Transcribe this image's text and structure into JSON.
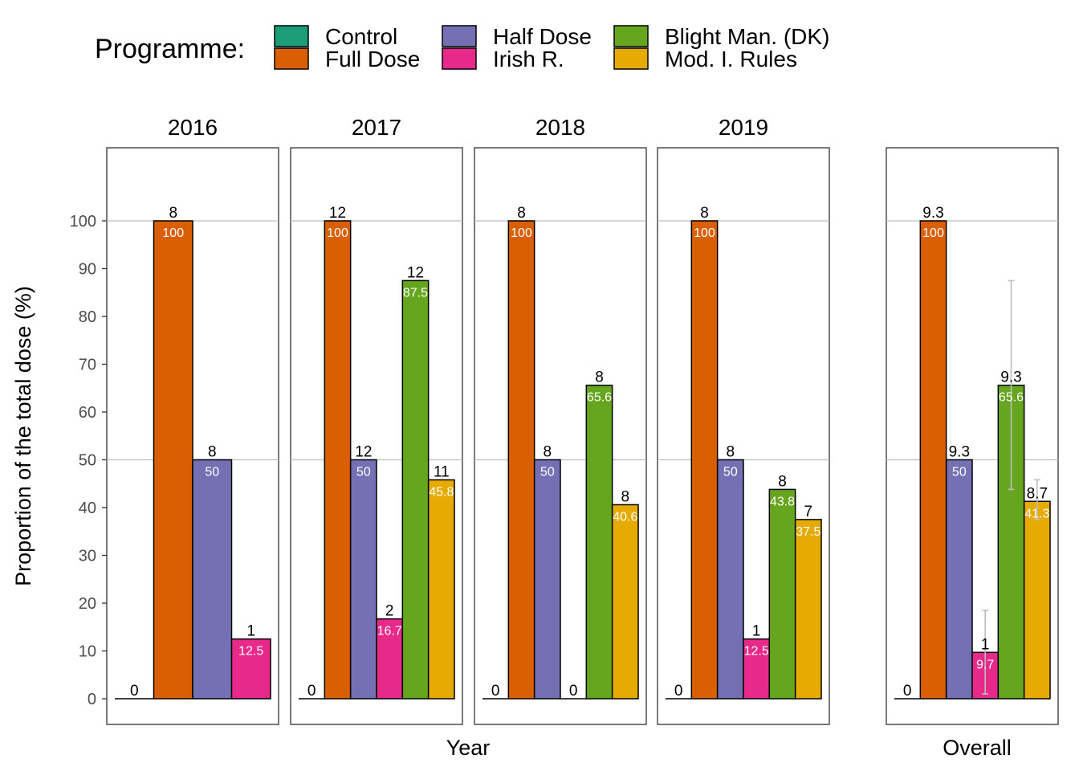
{
  "legend": {
    "title": "Programme:",
    "items": [
      {
        "label": "Control",
        "color": "#1b9e77"
      },
      {
        "label": "Full Dose",
        "color": "#d95f02"
      },
      {
        "label": "Half Dose",
        "color": "#7570b3"
      },
      {
        "label": "Irish R.",
        "color": "#e7298a"
      },
      {
        "label": "Blight Man. (DK)",
        "color": "#66a61e"
      },
      {
        "label": "Mod. I. Rules",
        "color": "#e6ab02"
      }
    ]
  },
  "chart_data": {
    "type": "bar",
    "ylabel": "Proportion of the total dose (%)",
    "xlabels": [
      "Year",
      "Overall"
    ],
    "ylim": [
      0,
      100
    ],
    "yticks": [
      0,
      10,
      20,
      30,
      40,
      50,
      60,
      70,
      80,
      90,
      100
    ],
    "grid": "horizontal major lines at 50 and 100",
    "legend_position": "top",
    "series_names": [
      "Control",
      "Full Dose",
      "Half Dose",
      "Irish R.",
      "Blight Man. (DK)",
      "Mod. I. Rules"
    ],
    "panels": [
      {
        "title": "2016",
        "bars": [
          {
            "series": "Control",
            "value": 0,
            "label": "0",
            "count": "0"
          },
          {
            "series": "Full Dose",
            "value": 100,
            "label": "100",
            "count": "8"
          },
          {
            "series": "Half Dose",
            "value": 50,
            "label": "50",
            "count": "8"
          },
          {
            "series": "Irish R.",
            "value": 12.5,
            "label": "12.5",
            "count": "1"
          }
        ]
      },
      {
        "title": "2017",
        "bars": [
          {
            "series": "Control",
            "value": 0,
            "label": "0",
            "count": "0"
          },
          {
            "series": "Full Dose",
            "value": 100,
            "label": "100",
            "count": "12"
          },
          {
            "series": "Half Dose",
            "value": 50,
            "label": "50",
            "count": "12"
          },
          {
            "series": "Irish R.",
            "value": 16.7,
            "label": "16.7",
            "count": "2"
          },
          {
            "series": "Blight Man. (DK)",
            "value": 87.5,
            "label": "87.5",
            "count": "12"
          },
          {
            "series": "Mod. I. Rules",
            "value": 45.8,
            "label": "45.8",
            "count": "11"
          }
        ]
      },
      {
        "title": "2018",
        "bars": [
          {
            "series": "Control",
            "value": 0,
            "label": "0",
            "count": "0"
          },
          {
            "series": "Full Dose",
            "value": 100,
            "label": "100",
            "count": "8"
          },
          {
            "series": "Half Dose",
            "value": 50,
            "label": "50",
            "count": "8"
          },
          {
            "series": "Irish R.",
            "value": 0,
            "label": "0",
            "count": "0"
          },
          {
            "series": "Blight Man. (DK)",
            "value": 65.6,
            "label": "65.6",
            "count": "8"
          },
          {
            "series": "Mod. I. Rules",
            "value": 40.6,
            "label": "40.6",
            "count": "8"
          }
        ]
      },
      {
        "title": "2019",
        "bars": [
          {
            "series": "Control",
            "value": 0,
            "label": "0",
            "count": "0"
          },
          {
            "series": "Full Dose",
            "value": 100,
            "label": "100",
            "count": "8"
          },
          {
            "series": "Half Dose",
            "value": 50,
            "label": "50",
            "count": "8"
          },
          {
            "series": "Irish R.",
            "value": 12.5,
            "label": "12.5",
            "count": "1"
          },
          {
            "series": "Blight Man. (DK)",
            "value": 43.8,
            "label": "43.8",
            "count": "8"
          },
          {
            "series": "Mod. I. Rules",
            "value": 37.5,
            "label": "37.5",
            "count": "7"
          }
        ]
      },
      {
        "title": "",
        "bars": [
          {
            "series": "Control",
            "value": 0,
            "label": "",
            "count": "0"
          },
          {
            "series": "Full Dose",
            "value": 100,
            "label": "100",
            "count": "9.3"
          },
          {
            "series": "Half Dose",
            "value": 50,
            "label": "50",
            "count": "9.3"
          },
          {
            "series": "Irish R.",
            "value": 9.7,
            "label": "9.7",
            "count": "1",
            "err": [
              1,
              18.5
            ]
          },
          {
            "series": "Blight Man. (DK)",
            "value": 65.6,
            "label": "65.6",
            "count": "9.3",
            "err": [
              43.8,
              87.5
            ]
          },
          {
            "series": "Mod. I. Rules",
            "value": 41.3,
            "label": "41.3",
            "count": "8.7",
            "err": [
              37.5,
              45.8
            ]
          }
        ]
      }
    ]
  }
}
